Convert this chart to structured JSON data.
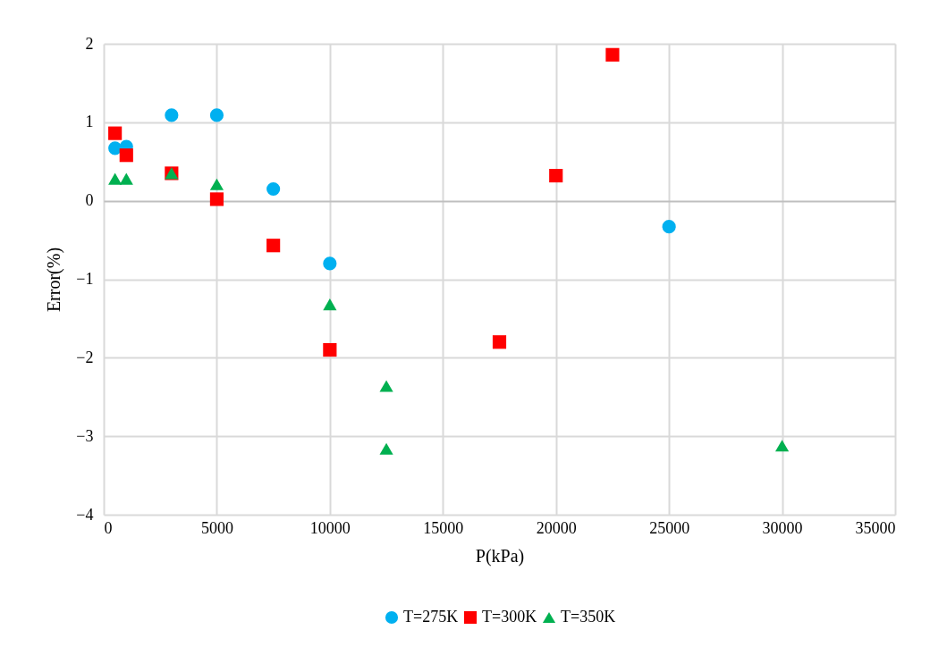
{
  "chart_data": {
    "type": "scatter",
    "xlabel": "P(kPa)",
    "ylabel": "Error(%)",
    "xlim": [
      0,
      35000
    ],
    "xticks": [
      0,
      5000,
      10000,
      15000,
      20000,
      25000,
      30000,
      35000
    ],
    "ylim": [
      -4,
      2
    ],
    "yticks": [
      -4,
      -3,
      -2,
      -1,
      0,
      1,
      2
    ],
    "grid": true,
    "legend": "bottom",
    "series": [
      {
        "name": "T=275K",
        "color": "#00b0f0",
        "marker": "circle",
        "x": [
          500,
          1000,
          3000,
          5000,
          7500,
          10000,
          25000
        ],
        "values": [
          0.67,
          0.69,
          1.09,
          1.09,
          0.15,
          -0.8,
          -0.33
        ]
      },
      {
        "name": "T=300K",
        "color": "#ff0000",
        "marker": "square",
        "x": [
          500,
          1000,
          3000,
          5000,
          7500,
          10000,
          17500,
          20000,
          22500
        ],
        "values": [
          0.86,
          0.58,
          0.35,
          0.02,
          -0.57,
          -1.9,
          -1.8,
          0.32,
          1.86
        ]
      },
      {
        "name": "T=350K",
        "color": "#00b050",
        "marker": "triangle",
        "x": [
          500,
          1000,
          3000,
          5000,
          10000,
          12500,
          12500,
          30000
        ],
        "values": [
          0.28,
          0.28,
          0.35,
          0.21,
          -1.32,
          -2.36,
          -3.16,
          -3.12
        ]
      }
    ]
  }
}
